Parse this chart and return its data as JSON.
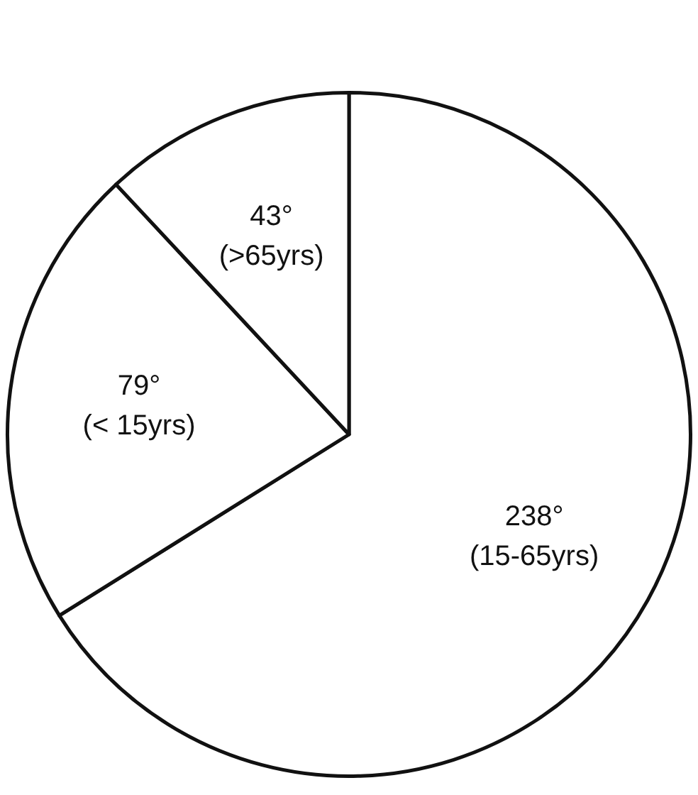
{
  "chart_data": {
    "type": "pie",
    "categories": [
      "(15-65yrs)",
      "(< 15yrs)",
      "(>65yrs)"
    ],
    "values": [
      238,
      79,
      43
    ],
    "colors": [
      "#ffffff",
      "#ffffff",
      "#ffffff"
    ],
    "value_labels": [
      "238°",
      "79°",
      "43°"
    ]
  }
}
